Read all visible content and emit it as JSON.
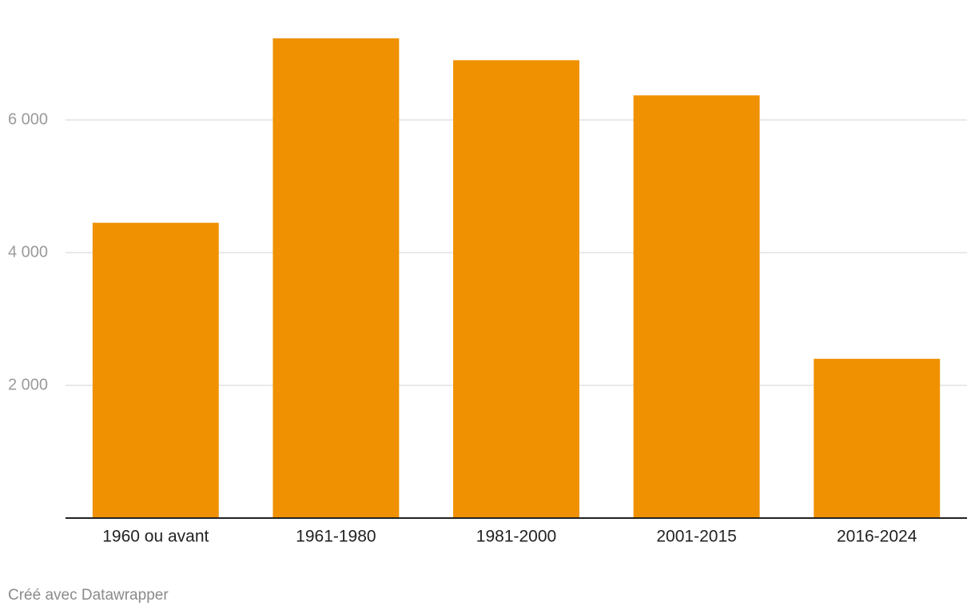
{
  "chart_data": {
    "type": "bar",
    "categories": [
      "1960 ou avant",
      "1961-1980",
      "1981-2000",
      "2001-2015",
      "2016-2024"
    ],
    "values": [
      4450,
      7230,
      6900,
      6370,
      2400
    ],
    "color": "#ef9100",
    "ylim": [
      0,
      7500
    ],
    "yticks": [
      {
        "value": 2000,
        "label": "2 000"
      },
      {
        "value": 4000,
        "label": "4 000"
      },
      {
        "value": 6000,
        "label": "6 000"
      }
    ],
    "grid": true,
    "credit": "Créé avec Datawrapper"
  }
}
